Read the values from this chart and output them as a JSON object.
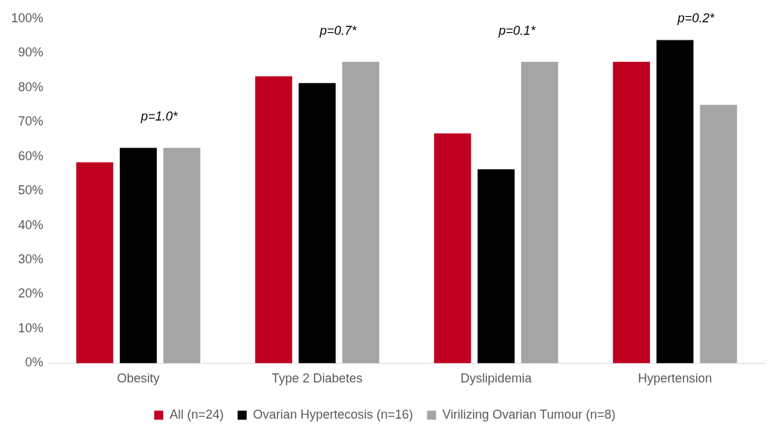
{
  "chart_data": {
    "type": "bar",
    "categories": [
      "Obesity",
      "Type 2 Diabetes",
      "Dyslipidemia",
      "Hypertension"
    ],
    "series": [
      {
        "name": "All (n=24)",
        "color": "#c00020",
        "values": [
          58.3,
          83.3,
          66.7,
          87.5
        ]
      },
      {
        "name": "Ovarian Hypertecosis (n=16)",
        "color": "#000000",
        "values": [
          62.5,
          81.3,
          56.3,
          93.8
        ]
      },
      {
        "name": "Virilizing Ovarian Tumour (n=8)",
        "color": "#a5a5a5",
        "values": [
          62.5,
          87.5,
          87.5,
          75
        ]
      }
    ],
    "ylim": [
      0,
      100
    ],
    "yticks": [
      {
        "value": 0,
        "label": "0%"
      },
      {
        "value": 10,
        "label": "10%"
      },
      {
        "value": 20,
        "label": "20%"
      },
      {
        "value": 30,
        "label": "30%"
      },
      {
        "value": 40,
        "label": "40%"
      },
      {
        "value": 50,
        "label": "50%"
      },
      {
        "value": 60,
        "label": "60%"
      },
      {
        "value": 70,
        "label": "70%"
      },
      {
        "value": 80,
        "label": "80%"
      },
      {
        "value": 90,
        "label": "90%"
      },
      {
        "value": 100,
        "label": "100%"
      }
    ],
    "annotations": [
      "p=1.0*",
      "p=0.7*",
      "p=0.1*",
      "p=0.2*"
    ],
    "grid": false,
    "legend": "bottom"
  }
}
